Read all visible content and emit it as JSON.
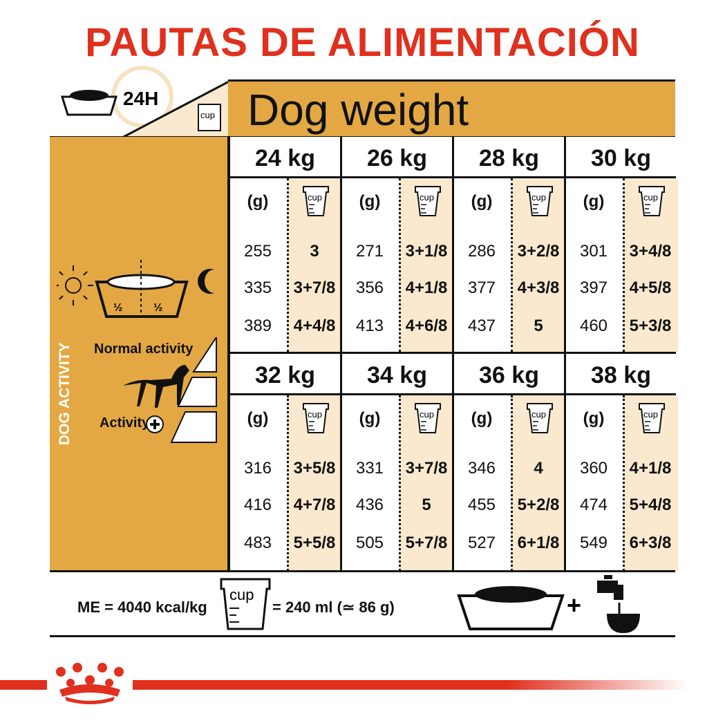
{
  "title": "PAUTAS DE ALIMENTACIÓN",
  "header": {
    "label_24h": "24H",
    "cup_label": "cup",
    "dog_weight": "Dog weight"
  },
  "left_panel": {
    "half_left": "½",
    "half_right": "½",
    "normal_activity": "Normal activity",
    "activity": "Activity",
    "dog_activity": "DOG ACTIVITY",
    "icons": [
      "sun-icon",
      "bowl-icon",
      "moon-icon",
      "dog-icon",
      "plus-icon"
    ]
  },
  "grams_label": "(g)",
  "weights": [
    {
      "kg": "24 kg",
      "g": [
        "255",
        "335",
        "389"
      ],
      "cups": [
        "3",
        "3+7/8",
        "4+4/8"
      ]
    },
    {
      "kg": "26 kg",
      "g": [
        "271",
        "356",
        "413"
      ],
      "cups": [
        "3+1/8",
        "4+1/8",
        "4+6/8"
      ]
    },
    {
      "kg": "28 kg",
      "g": [
        "286",
        "377",
        "437"
      ],
      "cups": [
        "3+2/8",
        "4+3/8",
        "5"
      ]
    },
    {
      "kg": "30 kg",
      "g": [
        "301",
        "397",
        "460"
      ],
      "cups": [
        "3+4/8",
        "4+5/8",
        "5+3/8"
      ]
    },
    {
      "kg": "32 kg",
      "g": [
        "316",
        "416",
        "483"
      ],
      "cups": [
        "3+5/8",
        "4+7/8",
        "5+5/8"
      ]
    },
    {
      "kg": "34 kg",
      "g": [
        "331",
        "436",
        "505"
      ],
      "cups": [
        "3+7/8",
        "5",
        "5+7/8"
      ]
    },
    {
      "kg": "36 kg",
      "g": [
        "346",
        "455",
        "527"
      ],
      "cups": [
        "4",
        "5+2/8",
        "6+1/8"
      ]
    },
    {
      "kg": "38 kg",
      "g": [
        "360",
        "474",
        "549"
      ],
      "cups": [
        "4+1/8",
        "5+4/8",
        "6+3/8"
      ]
    }
  ],
  "footer": {
    "me": "ME = 4040 kcal/kg",
    "cup": "cup",
    "cup_eq": "= 240 ml (≃ 86 g)",
    "plus": "+"
  },
  "colors": {
    "red": "#e0301e",
    "gold": "#e3a843",
    "cream": "#fae9ce"
  }
}
